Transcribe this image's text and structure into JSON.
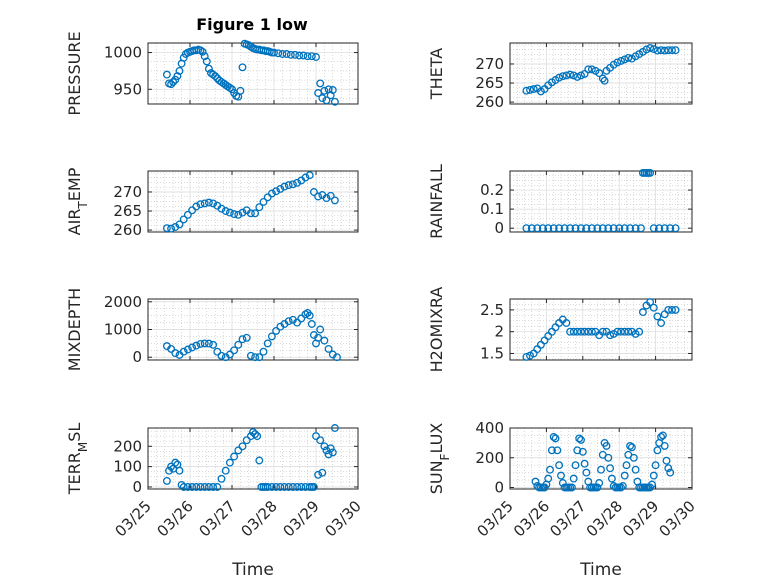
{
  "figure": {
    "title": "Figure 1 low"
  },
  "colors": {
    "marker": "#0072bd",
    "axis": "#262626"
  },
  "chart_data": [
    {
      "type": "scatter",
      "ylabel": "PRESSURE",
      "xlabel": "",
      "title": "Figure 1 low",
      "xlim": [
        0,
        5
      ],
      "ylim": [
        930,
        1013
      ],
      "yticks": [
        950,
        1000
      ],
      "yticklabels": [
        "950",
        "1000"
      ],
      "x_ticklabels": [],
      "grid": true,
      "marker": "circle",
      "x": [
        0.45,
        0.5,
        0.55,
        0.6,
        0.65,
        0.7,
        0.75,
        0.8,
        0.85,
        0.9,
        0.95,
        1.0,
        1.05,
        1.1,
        1.15,
        1.2,
        1.25,
        1.3,
        1.35,
        1.4,
        1.45,
        1.5,
        1.55,
        1.6,
        1.65,
        1.7,
        1.75,
        1.8,
        1.85,
        1.9,
        1.95,
        2.0,
        2.05,
        2.1,
        2.15,
        2.2,
        2.25,
        2.3,
        2.35,
        2.4,
        2.45,
        2.5,
        2.55,
        2.6,
        2.65,
        2.7,
        2.75,
        2.8,
        2.85,
        2.9,
        2.95,
        3.0,
        3.1,
        3.2,
        3.3,
        3.4,
        3.5,
        3.6,
        3.7,
        3.8,
        3.9,
        4.0,
        4.05,
        4.1,
        4.15,
        4.2,
        4.25,
        4.3,
        4.35,
        4.4,
        4.45
      ],
      "y": [
        970,
        958,
        957,
        960,
        963,
        968,
        975,
        985,
        993,
        998,
        1000,
        1001,
        1002,
        1003,
        1003,
        1004,
        1003,
        1001,
        995,
        988,
        978,
        972,
        970,
        968,
        965,
        962,
        960,
        958,
        956,
        954,
        952,
        950,
        945,
        941,
        940,
        948,
        980,
        1012,
        1011,
        1010,
        1008,
        1006,
        1005,
        1004,
        1004,
        1003,
        1003,
        1002,
        1002,
        1001,
        1000,
        1000,
        999,
        998,
        998,
        997,
        997,
        996,
        996,
        995,
        995,
        994,
        945,
        958,
        938,
        948,
        935,
        950,
        942,
        949,
        933
      ]
    },
    {
      "type": "scatter",
      "ylabel": "THETA",
      "xlabel": "",
      "xlim": [
        0,
        5
      ],
      "ylim": [
        259.5,
        275.5
      ],
      "yticks": [
        260,
        265,
        270
      ],
      "yticklabels": [
        "260",
        "265",
        "270"
      ],
      "x_ticklabels": [],
      "grid": true,
      "marker": "circle",
      "x": [
        0.45,
        0.55,
        0.65,
        0.75,
        0.85,
        0.95,
        1.05,
        1.15,
        1.25,
        1.35,
        1.45,
        1.55,
        1.65,
        1.75,
        1.85,
        1.95,
        2.05,
        2.15,
        2.25,
        2.35,
        2.45,
        2.55,
        2.6,
        2.65,
        2.75,
        2.85,
        2.95,
        3.05,
        3.15,
        3.25,
        3.35,
        3.45,
        3.55,
        3.65,
        3.75,
        3.85,
        3.95,
        4.05,
        4.15,
        4.25,
        4.35,
        4.45,
        4.55
      ],
      "y": [
        263,
        263.2,
        263.4,
        263.6,
        262.8,
        263.4,
        264.4,
        265.2,
        265.8,
        266.4,
        266.8,
        267,
        267.2,
        267,
        266.6,
        267,
        267.4,
        268.6,
        268.6,
        268.2,
        267.6,
        266.2,
        265.6,
        268.2,
        269,
        269.8,
        270.4,
        270.8,
        271.2,
        271.6,
        271.4,
        272,
        272.6,
        273.2,
        273.8,
        274.2,
        273.9,
        273.5,
        273.6,
        273.5,
        273.6,
        273.6,
        273.6
      ]
    },
    {
      "type": "scatter",
      "ylabel": "AIR_TEMP",
      "xlabel": "",
      "xlim": [
        0,
        5
      ],
      "ylim": [
        259.5,
        275.5
      ],
      "yticks": [
        260,
        265,
        270
      ],
      "yticklabels": [
        "260",
        "265",
        "270"
      ],
      "x_ticklabels": [],
      "grid": true,
      "marker": "circle",
      "x": [
        0.45,
        0.55,
        0.65,
        0.75,
        0.85,
        0.95,
        1.05,
        1.15,
        1.25,
        1.35,
        1.45,
        1.55,
        1.65,
        1.75,
        1.85,
        1.95,
        2.05,
        2.15,
        2.25,
        2.35,
        2.45,
        2.55,
        2.65,
        2.75,
        2.85,
        2.95,
        3.05,
        3.15,
        3.25,
        3.35,
        3.45,
        3.55,
        3.65,
        3.75,
        3.85,
        3.95,
        4.05,
        4.15,
        4.25,
        4.35,
        4.45
      ],
      "y": [
        260.5,
        260.4,
        260.8,
        261.5,
        262.8,
        264,
        265.2,
        266.2,
        266.8,
        267,
        267.2,
        267,
        266.4,
        265.6,
        265,
        264.6,
        264.2,
        264,
        264.6,
        265.2,
        264.4,
        264.4,
        266,
        267.4,
        268.6,
        269.6,
        270.2,
        270.8,
        271.4,
        271.8,
        272,
        272.4,
        273,
        273.8,
        274.4,
        270,
        268.8,
        269.2,
        268.4,
        269,
        267.8
      ]
    },
    {
      "type": "scatter",
      "ylabel": "RAINFALL",
      "xlabel": "",
      "xlim": [
        0,
        5
      ],
      "ylim": [
        -0.02,
        0.3
      ],
      "yticks": [
        0,
        0.1,
        0.2
      ],
      "yticklabels": [
        "0",
        "0.1",
        "0.2"
      ],
      "x_ticklabels": [],
      "grid": true,
      "marker": "circle",
      "x": [
        0.45,
        0.6,
        0.75,
        0.9,
        1.05,
        1.2,
        1.35,
        1.5,
        1.65,
        1.8,
        1.95,
        2.1,
        2.25,
        2.4,
        2.55,
        2.7,
        2.85,
        3.0,
        3.15,
        3.3,
        3.45,
        3.6,
        3.65,
        3.7,
        3.75,
        3.8,
        3.85,
        3.95,
        4.1,
        4.25,
        4.4,
        4.55
      ],
      "y": [
        0,
        0,
        0,
        0,
        0,
        0,
        0,
        0,
        0,
        0,
        0,
        0,
        0,
        0,
        0,
        0,
        0,
        0,
        0,
        0,
        0,
        0,
        0.29,
        0.29,
        0.29,
        0.29,
        0.29,
        0,
        0,
        0,
        0,
        0
      ]
    },
    {
      "type": "scatter",
      "ylabel": "MIXDEPTH",
      "xlabel": "",
      "xlim": [
        0,
        5
      ],
      "ylim": [
        -100,
        2100
      ],
      "yticks": [
        0,
        1000,
        2000
      ],
      "yticklabels": [
        "0",
        "1000",
        "2000"
      ],
      "x_ticklabels": [],
      "grid": true,
      "marker": "circle",
      "x": [
        0.45,
        0.55,
        0.65,
        0.75,
        0.85,
        0.95,
        1.05,
        1.15,
        1.25,
        1.35,
        1.45,
        1.55,
        1.65,
        1.75,
        1.85,
        1.95,
        2.05,
        2.15,
        2.25,
        2.35,
        2.45,
        2.55,
        2.65,
        2.75,
        2.85,
        2.95,
        3.05,
        3.15,
        3.25,
        3.35,
        3.45,
        3.55,
        3.65,
        3.75,
        3.8,
        3.85,
        3.9,
        3.95,
        4.0,
        4.05,
        4.1,
        4.2,
        4.3,
        4.4,
        4.5
      ],
      "y": [
        400,
        300,
        150,
        80,
        200,
        280,
        350,
        420,
        480,
        500,
        490,
        450,
        200,
        50,
        0,
        100,
        250,
        450,
        650,
        700,
        50,
        0,
        0,
        200,
        500,
        750,
        950,
        1100,
        1200,
        1300,
        1350,
        1250,
        1400,
        1550,
        1600,
        1500,
        1200,
        800,
        500,
        700,
        1000,
        600,
        300,
        100,
        0
      ]
    },
    {
      "type": "scatter",
      "ylabel": "H2OMIXRA",
      "xlabel": "",
      "xlim": [
        0,
        5
      ],
      "ylim": [
        1.35,
        2.75
      ],
      "yticks": [
        1.5,
        2,
        2.5
      ],
      "yticklabels": [
        "1.5",
        "2",
        "2.5"
      ],
      "x_ticklabels": [],
      "grid": true,
      "marker": "circle",
      "x": [
        0.45,
        0.55,
        0.65,
        0.75,
        0.85,
        0.95,
        1.05,
        1.15,
        1.25,
        1.35,
        1.45,
        1.55,
        1.65,
        1.75,
        1.85,
        1.95,
        2.05,
        2.15,
        2.25,
        2.35,
        2.45,
        2.55,
        2.65,
        2.75,
        2.85,
        2.95,
        3.05,
        3.15,
        3.25,
        3.35,
        3.45,
        3.55,
        3.65,
        3.75,
        3.85,
        3.95,
        4.05,
        4.15,
        4.25,
        4.35,
        4.45,
        4.55
      ],
      "y": [
        1.42,
        1.45,
        1.5,
        1.6,
        1.7,
        1.8,
        1.9,
        2.0,
        2.1,
        2.2,
        2.28,
        2.2,
        2.0,
        2.0,
        2.0,
        2.0,
        2.0,
        2.0,
        2.0,
        2.0,
        1.92,
        2.0,
        2.0,
        1.92,
        1.95,
        2.0,
        2.0,
        2.0,
        2.0,
        2.0,
        1.95,
        2.0,
        2.45,
        2.6,
        2.68,
        2.55,
        2.35,
        2.2,
        2.4,
        2.5,
        2.5,
        2.5
      ]
    },
    {
      "type": "scatter",
      "ylabel": "TERR_MSL",
      "xlabel": "Time",
      "xlim": [
        0,
        5
      ],
      "ylim": [
        -10,
        290
      ],
      "yticks": [
        0,
        100,
        200
      ],
      "yticklabels": [
        "0",
        "100",
        "200"
      ],
      "xticks": [
        0,
        1,
        2,
        3,
        4,
        5
      ],
      "x_ticklabels": [
        "03/25",
        "03/26",
        "03/27",
        "03/28",
        "03/29",
        "03/30"
      ],
      "grid": true,
      "marker": "circle",
      "x": [
        0.45,
        0.5,
        0.55,
        0.6,
        0.65,
        0.7,
        0.75,
        0.8,
        0.85,
        0.95,
        1.05,
        1.15,
        1.25,
        1.35,
        1.45,
        1.55,
        1.65,
        1.75,
        1.85,
        1.95,
        2.05,
        2.15,
        2.25,
        2.35,
        2.45,
        2.5,
        2.55,
        2.6,
        2.65,
        2.7,
        2.75,
        2.8,
        2.85,
        2.95,
        3.05,
        3.15,
        3.25,
        3.35,
        3.45,
        3.55,
        3.65,
        3.75,
        3.85,
        3.9,
        3.95,
        4.0,
        4.05,
        4.1,
        4.15,
        4.2,
        4.25,
        4.3,
        4.35,
        4.4,
        4.45
      ],
      "y": [
        30,
        80,
        100,
        90,
        120,
        110,
        80,
        10,
        0,
        0,
        0,
        0,
        0,
        0,
        0,
        0,
        0,
        40,
        80,
        120,
        150,
        180,
        200,
        230,
        250,
        270,
        260,
        250,
        130,
        0,
        0,
        0,
        0,
        0,
        0,
        0,
        0,
        0,
        0,
        0,
        0,
        0,
        0,
        0,
        0,
        250,
        60,
        230,
        70,
        200,
        180,
        160,
        190,
        170,
        290
      ]
    },
    {
      "type": "scatter",
      "ylabel": "SUN_FLUX",
      "xlabel": "Time",
      "xlim": [
        0,
        5
      ],
      "ylim": [
        -10,
        400
      ],
      "yticks": [
        0,
        200,
        400
      ],
      "yticklabels": [
        "0",
        "200",
        "400"
      ],
      "xticks": [
        0,
        1,
        2,
        3,
        4,
        5
      ],
      "x_ticklabels": [
        "03/25",
        "03/26",
        "03/27",
        "03/28",
        "03/29",
        "03/30"
      ],
      "grid": true,
      "marker": "circle",
      "x": [
        0.7,
        0.75,
        0.8,
        0.85,
        0.9,
        0.95,
        1.0,
        1.05,
        1.1,
        1.15,
        1.2,
        1.25,
        1.3,
        1.35,
        1.4,
        1.45,
        1.5,
        1.55,
        1.6,
        1.65,
        1.7,
        1.75,
        1.8,
        1.85,
        1.9,
        1.95,
        2.0,
        2.05,
        2.1,
        2.15,
        2.2,
        2.25,
        2.3,
        2.35,
        2.4,
        2.45,
        2.5,
        2.55,
        2.6,
        2.65,
        2.7,
        2.75,
        2.8,
        2.85,
        2.9,
        2.95,
        3.0,
        3.05,
        3.1,
        3.15,
        3.2,
        3.25,
        3.3,
        3.35,
        3.4,
        3.45,
        3.5,
        3.55,
        3.6,
        3.65,
        3.7,
        3.75,
        3.8,
        3.85,
        3.9,
        3.95,
        4.0,
        4.05,
        4.1,
        4.15,
        4.2,
        4.25,
        4.3,
        4.35,
        4.4
      ],
      "y": [
        40,
        10,
        0,
        0,
        0,
        0,
        20,
        60,
        120,
        250,
        340,
        330,
        250,
        150,
        80,
        30,
        0,
        0,
        0,
        0,
        0,
        60,
        150,
        250,
        330,
        320,
        240,
        160,
        100,
        40,
        0,
        0,
        0,
        0,
        0,
        30,
        120,
        220,
        300,
        280,
        200,
        130,
        60,
        10,
        0,
        0,
        0,
        0,
        10,
        80,
        150,
        220,
        280,
        270,
        200,
        120,
        40,
        0,
        0,
        0,
        0,
        0,
        0,
        0,
        20,
        80,
        150,
        250,
        300,
        340,
        350,
        280,
        180,
        130,
        100
      ]
    }
  ]
}
